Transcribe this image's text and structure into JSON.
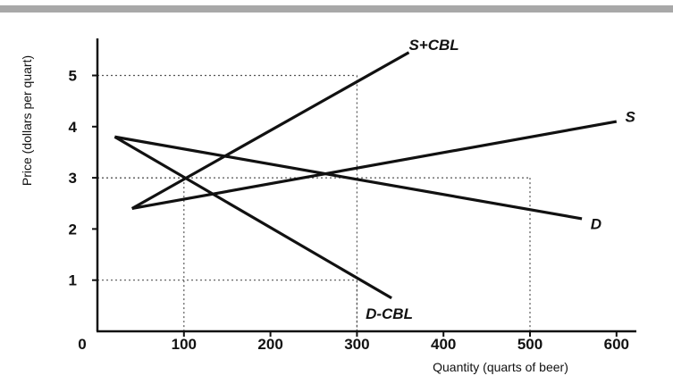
{
  "chart_data": {
    "type": "line",
    "xlabel": "Quantity (quarts of beer)",
    "ylabel": "Price (dollars per quart)",
    "xlim": [
      0,
      600
    ],
    "ylim": [
      0,
      5.5
    ],
    "x_ticks": [
      "0",
      "100",
      "200",
      "300",
      "400",
      "500",
      "600"
    ],
    "y_ticks": [
      "1",
      "2",
      "3",
      "4",
      "5"
    ],
    "grid": false,
    "series": [
      {
        "name": "S",
        "x": [
          40,
          600
        ],
        "y": [
          2.4,
          4.1
        ],
        "label_at": [
          610,
          4.2
        ]
      },
      {
        "name": "D",
        "x": [
          20,
          560
        ],
        "y": [
          3.8,
          2.2
        ],
        "label_at": [
          570,
          2.1
        ]
      },
      {
        "name": "S+CBL",
        "x": [
          40,
          360
        ],
        "y": [
          2.4,
          5.45
        ],
        "label_at": [
          360,
          5.6
        ]
      },
      {
        "name": "D-CBL",
        "x": [
          20,
          340
        ],
        "y": [
          3.8,
          0.65
        ],
        "label_at": [
          310,
          0.35
        ]
      }
    ],
    "reference_points": [
      {
        "x": 100,
        "y": 3
      },
      {
        "x": 300,
        "y": 5
      },
      {
        "x": 300,
        "y": 1
      },
      {
        "x": 500,
        "y": 3
      }
    ]
  },
  "colors": {
    "line": "#111111",
    "guide": "#555555",
    "top_rule": "#a8a8a8"
  }
}
